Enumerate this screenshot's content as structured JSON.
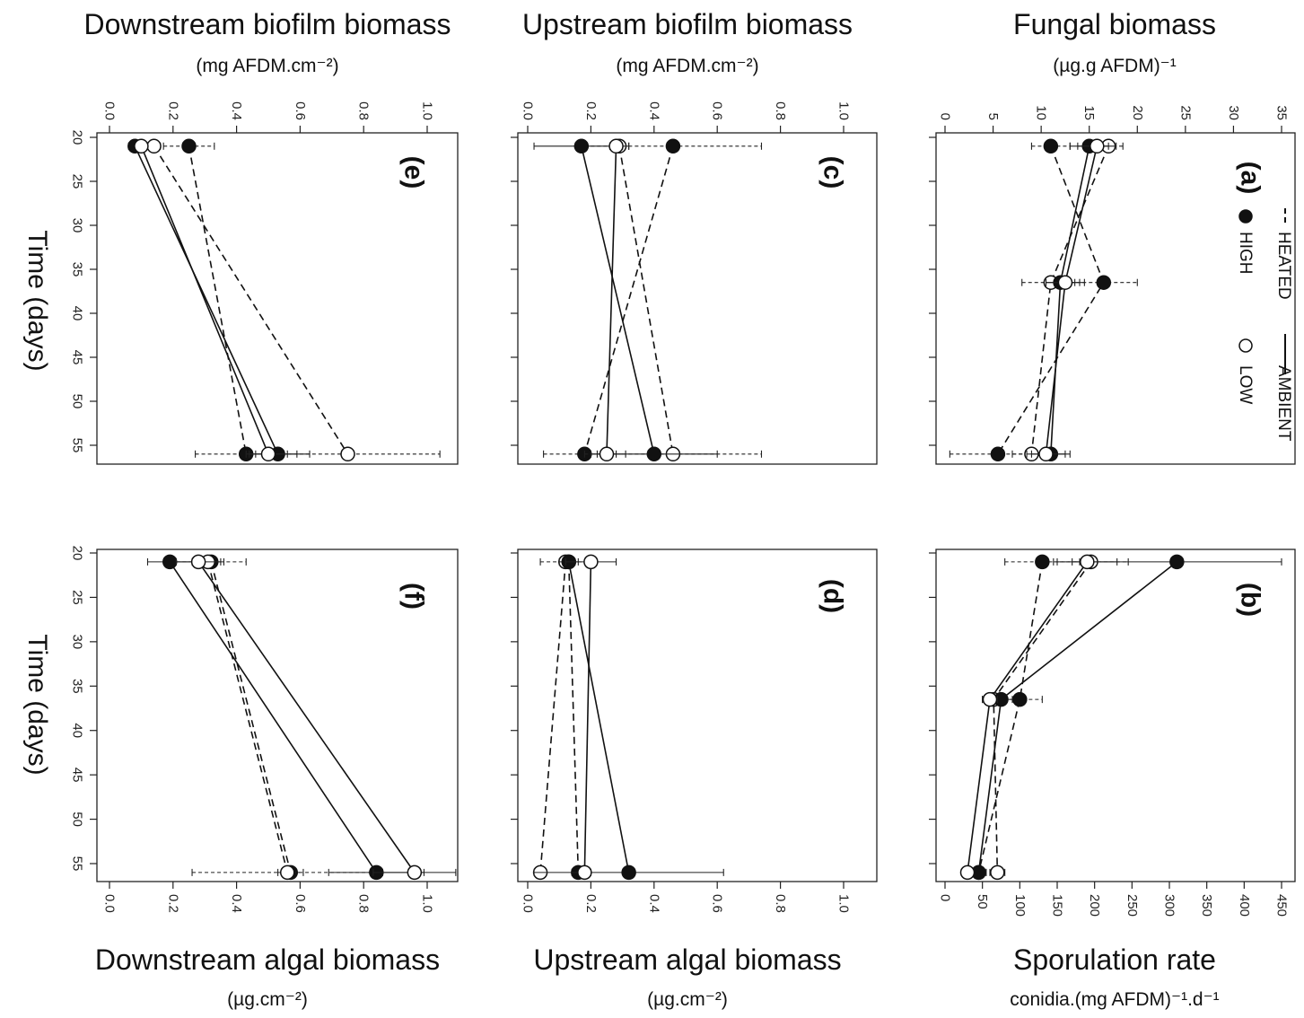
{
  "figure": {
    "time_label": "Time (days)",
    "legend": {
      "heated_label": "HEATED",
      "ambient_label": "AMBIENT",
      "high_label": "HIGH",
      "low_label": "LOW"
    }
  },
  "chart_data": [
    {
      "id": "a",
      "type": "line",
      "panel_label": "(a)",
      "title": "Fungal biomass",
      "ylabel": "(µg.g AFDM)⁻¹",
      "xlabel": "Time (days)",
      "xlim": [
        20,
        57
      ],
      "ylim": [
        0,
        35
      ],
      "x_ticks": [
        20,
        25,
        30,
        35,
        40,
        45,
        50,
        55
      ],
      "y_ticks": [
        0,
        5,
        10,
        15,
        20,
        25,
        30,
        35
      ],
      "y_tick_labels": [
        "0",
        "5",
        "10",
        "15",
        "20",
        "25",
        "30",
        "35"
      ],
      "legend": true,
      "series": [
        {
          "temperature": "heated",
          "level": "high",
          "x": [
            21,
            36.5,
            56
          ],
          "y": [
            11,
            16.5,
            5.5
          ],
          "err": [
            2,
            3.5,
            5
          ]
        },
        {
          "temperature": "heated",
          "level": "low",
          "x": [
            21,
            36.5,
            56
          ],
          "y": [
            17,
            11,
            9
          ],
          "err": [
            1.5,
            3,
            2
          ]
        },
        {
          "temperature": "ambient",
          "level": "high",
          "x": [
            21,
            36.5,
            56
          ],
          "y": [
            15,
            12,
            11
          ],
          "err": [
            2,
            1.5,
            2
          ]
        },
        {
          "temperature": "ambient",
          "level": "low",
          "x": [
            21,
            36.5,
            56
          ],
          "y": [
            15.8,
            12.5,
            10.5
          ],
          "err": [
            2,
            2,
            2
          ]
        }
      ]
    },
    {
      "id": "b",
      "type": "line",
      "panel_label": "(b)",
      "title": "Sporulation rate",
      "ylabel": "conidia.(mg AFDM)⁻¹.d⁻¹",
      "xlabel": "Time (days)",
      "xlim": [
        20,
        57
      ],
      "ylim": [
        0,
        450
      ],
      "x_ticks": [
        20,
        25,
        30,
        35,
        40,
        45,
        50,
        55
      ],
      "y_ticks": [
        0,
        50,
        100,
        150,
        200,
        250,
        300,
        350,
        400,
        450
      ],
      "y_tick_labels": [
        "0",
        "50",
        "100",
        "150",
        "200",
        "250",
        "300",
        "350",
        "400",
        "450"
      ],
      "legend": false,
      "series": [
        {
          "temperature": "heated",
          "level": "high",
          "x": [
            21,
            36.5,
            56
          ],
          "y": [
            130,
            100,
            45
          ],
          "err": [
            50,
            30,
            10
          ]
        },
        {
          "temperature": "heated",
          "level": "low",
          "x": [
            21,
            36.5,
            56
          ],
          "y": [
            195,
            65,
            70
          ],
          "err": [
            50,
            15,
            10
          ]
        },
        {
          "temperature": "ambient",
          "level": "high",
          "x": [
            21,
            36.5,
            56
          ],
          "y": [
            310,
            75,
            45
          ],
          "err": [
            140,
            15,
            10
          ]
        },
        {
          "temperature": "ambient",
          "level": "low",
          "x": [
            21,
            36.5,
            56
          ],
          "y": [
            190,
            60,
            30
          ],
          "err": [
            40,
            10,
            8
          ]
        }
      ]
    },
    {
      "id": "c",
      "type": "line",
      "panel_label": "(c)",
      "title": "Upstream biofilm biomass",
      "ylabel": "(mg AFDM.cm⁻²)",
      "xlabel": "Time (days)",
      "xlim": [
        20,
        57
      ],
      "ylim": [
        0,
        1
      ],
      "x_ticks": [
        20,
        25,
        30,
        35,
        40,
        45,
        50,
        55
      ],
      "y_ticks": [
        0,
        0.2,
        0.4,
        0.6,
        0.8,
        1.0
      ],
      "y_tick_labels": [
        "0.0",
        "0.2",
        "0.4",
        "0.6",
        "0.8",
        "1.0"
      ],
      "legend": false,
      "series": [
        {
          "temperature": "heated",
          "level": "high",
          "x": [
            21,
            56
          ],
          "y": [
            0.46,
            0.18
          ],
          "err": [
            0.28,
            0.13
          ]
        },
        {
          "temperature": "heated",
          "level": "low",
          "x": [
            21,
            56
          ],
          "y": [
            0.29,
            0.46
          ],
          "err": [
            0.03,
            0.28
          ]
        },
        {
          "temperature": "ambient",
          "level": "high",
          "x": [
            21,
            56
          ],
          "y": [
            0.17,
            0.4
          ],
          "err": [
            0.15,
            0.2
          ]
        },
        {
          "temperature": "ambient",
          "level": "low",
          "x": [
            21,
            56
          ],
          "y": [
            0.28,
            0.25
          ],
          "err": [
            0.02,
            0.03
          ]
        }
      ]
    },
    {
      "id": "d",
      "type": "line",
      "panel_label": "(d)",
      "title": "Upstream algal biomass",
      "ylabel": "(µg.cm⁻²)",
      "xlabel": "Time (days)",
      "xlim": [
        20,
        57
      ],
      "ylim": [
        0,
        1
      ],
      "x_ticks": [
        20,
        25,
        30,
        35,
        40,
        45,
        50,
        55
      ],
      "y_ticks": [
        0,
        0.2,
        0.4,
        0.6,
        0.8,
        1.0
      ],
      "y_tick_labels": [
        "0.0",
        "0.2",
        "0.4",
        "0.6",
        "0.8",
        "1.0"
      ],
      "legend": false,
      "series": [
        {
          "temperature": "heated",
          "level": "high",
          "x": [
            21,
            56
          ],
          "y": [
            0.13,
            0.16
          ],
          "err": [
            0.02,
            0.02
          ]
        },
        {
          "temperature": "heated",
          "level": "low",
          "x": [
            21,
            56
          ],
          "y": [
            0.12,
            0.04
          ],
          "err": [
            0.08,
            0.01
          ]
        },
        {
          "temperature": "ambient",
          "level": "high",
          "x": [
            21,
            56
          ],
          "y": [
            0.13,
            0.32
          ],
          "err": [
            0.03,
            0.3
          ]
        },
        {
          "temperature": "ambient",
          "level": "low",
          "x": [
            21,
            56
          ],
          "y": [
            0.2,
            0.18
          ],
          "err": [
            0.08,
            0.02
          ]
        }
      ]
    },
    {
      "id": "e",
      "type": "line",
      "panel_label": "(e)",
      "title": "Downstream biofilm biomass",
      "ylabel": "(mg AFDM.cm⁻²)",
      "xlabel": "Time (days)",
      "xlim": [
        20,
        57
      ],
      "ylim": [
        0,
        1
      ],
      "x_ticks": [
        20,
        25,
        30,
        35,
        40,
        45,
        50,
        55
      ],
      "y_ticks": [
        0,
        0.2,
        0.4,
        0.6,
        0.8,
        1.0
      ],
      "y_tick_labels": [
        "0.0",
        "0.2",
        "0.4",
        "0.6",
        "0.8",
        "1.0"
      ],
      "legend": false,
      "series": [
        {
          "temperature": "heated",
          "level": "high",
          "x": [
            21,
            56
          ],
          "y": [
            0.25,
            0.43
          ],
          "err": [
            0.08,
            0.16
          ]
        },
        {
          "temperature": "heated",
          "level": "low",
          "x": [
            21,
            56
          ],
          "y": [
            0.14,
            0.75
          ],
          "err": [
            0.02,
            0.29
          ]
        },
        {
          "temperature": "ambient",
          "level": "high",
          "x": [
            21,
            56
          ],
          "y": [
            0.08,
            0.53
          ],
          "err": [
            0.02,
            0.1
          ]
        },
        {
          "temperature": "ambient",
          "level": "low",
          "x": [
            21,
            56
          ],
          "y": [
            0.1,
            0.5
          ],
          "err": [
            0.02,
            0.06
          ]
        }
      ]
    },
    {
      "id": "f",
      "type": "line",
      "panel_label": "(f)",
      "title": "Downstream algal biomass",
      "ylabel": "(µg.cm⁻²)",
      "xlabel": "Time (days)",
      "xlim": [
        20,
        57
      ],
      "ylim": [
        0,
        1
      ],
      "x_ticks": [
        20,
        25,
        30,
        35,
        40,
        45,
        50,
        55
      ],
      "y_ticks": [
        0,
        0.2,
        0.4,
        0.6,
        0.8,
        1.0
      ],
      "y_tick_labels": [
        "0.0",
        "0.2",
        "0.4",
        "0.6",
        "0.8",
        "1.0"
      ],
      "legend": false,
      "series": [
        {
          "temperature": "heated",
          "level": "high",
          "x": [
            21,
            56
          ],
          "y": [
            0.32,
            0.57
          ],
          "err": [
            0.11,
            0.04
          ]
        },
        {
          "temperature": "heated",
          "level": "low",
          "x": [
            21,
            56
          ],
          "y": [
            0.31,
            0.56
          ],
          "err": [
            0.05,
            0.3
          ]
        },
        {
          "temperature": "ambient",
          "level": "high",
          "x": [
            21,
            56
          ],
          "y": [
            0.19,
            0.84
          ],
          "err": [
            0.07,
            0.15
          ]
        },
        {
          "temperature": "ambient",
          "level": "low",
          "x": [
            21,
            56
          ],
          "y": [
            0.28,
            0.96
          ],
          "err": [
            0.07,
            0.13
          ]
        }
      ]
    }
  ]
}
